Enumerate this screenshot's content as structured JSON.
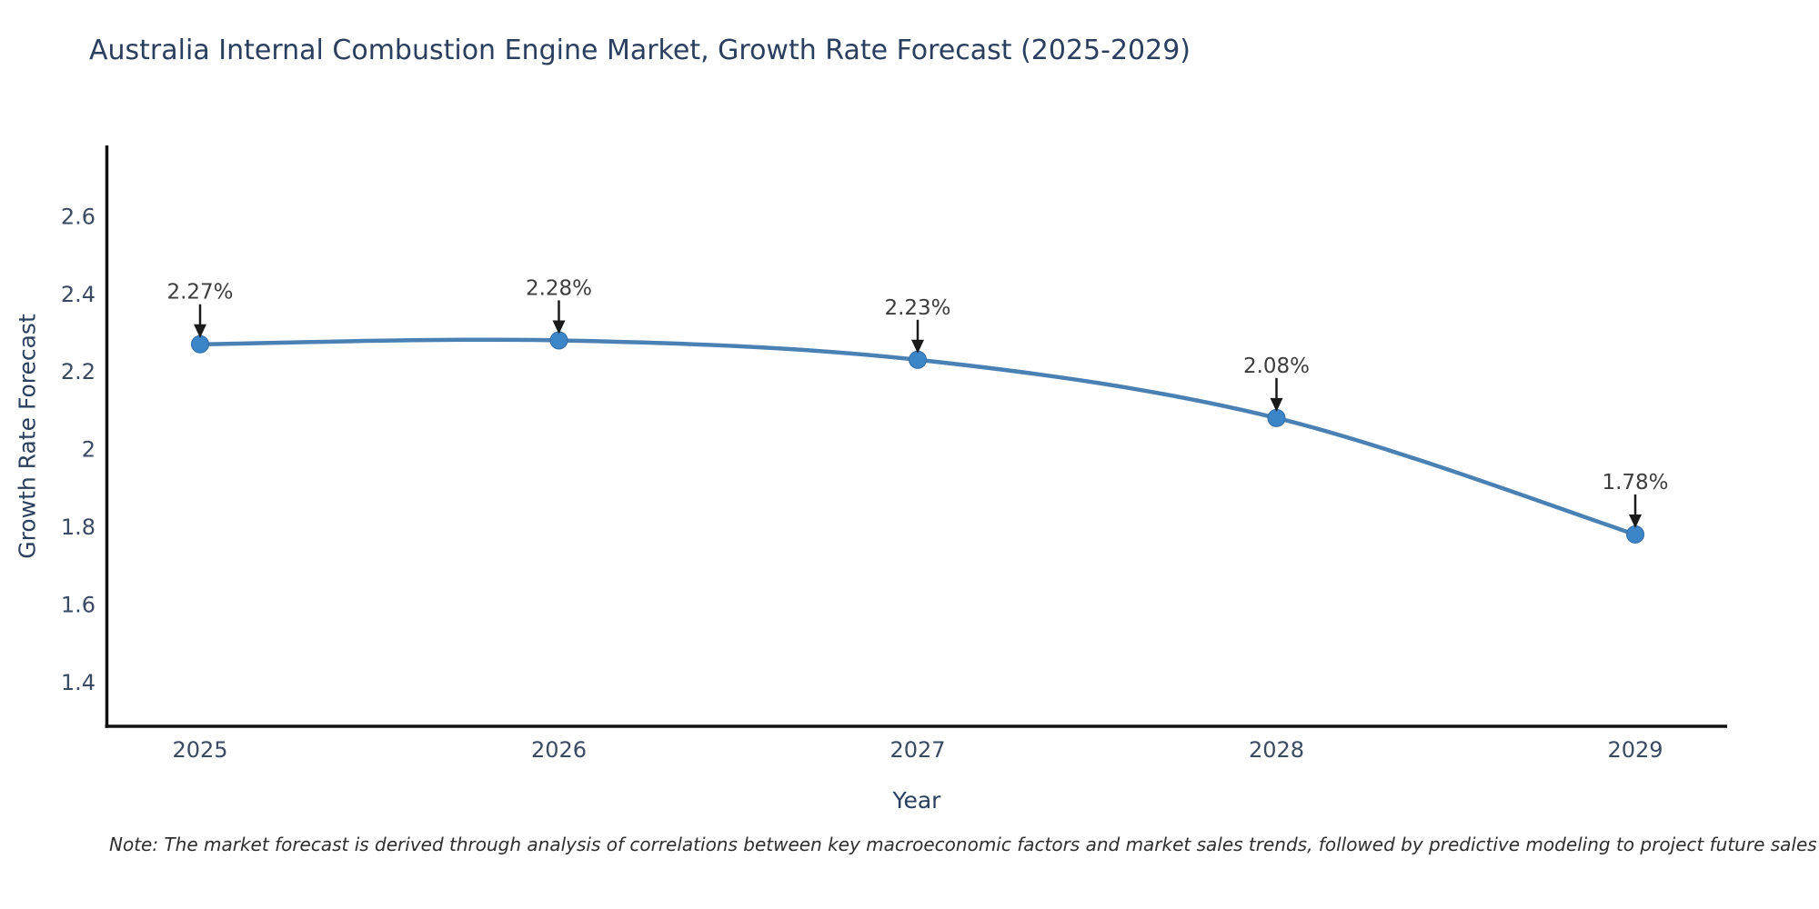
{
  "note": "Note: The market forecast is derived through analysis of correlations between key macroeconomic factors and market sales trends, followed by predictive modeling to project future sales",
  "colors": {
    "line": "#4a81b4",
    "marker": "#3c85c9",
    "marker_edge": "#2f6ba3",
    "axis": "#101010",
    "title": "#2a3f5f",
    "tick": "#3b4a63",
    "annotation_text": "#3d3d3d",
    "arrow": "#1a1a1a"
  },
  "chart_data": {
    "type": "line",
    "title": "Australia Internal Combustion Engine Market, Growth Rate Forecast (2025-2029)",
    "xlabel": "Year",
    "ylabel": "Growth Rate Forecast",
    "x": [
      2025,
      2026,
      2027,
      2028,
      2029
    ],
    "y": [
      2.27,
      2.28,
      2.23,
      2.08,
      1.78
    ],
    "point_labels": [
      "2.27%",
      "2.28%",
      "2.23%",
      "2.08%",
      "1.78%"
    ],
    "xtick_labels": [
      "2025",
      "2026",
      "2027",
      "2028",
      "2029"
    ],
    "ytick_labels": [
      "1.4",
      "1.6",
      "1.8",
      "2",
      "2.2",
      "2.4",
      "2.6"
    ],
    "ylim": [
      1.28,
      2.78
    ],
    "grid": false,
    "legend": "none",
    "line_shape": "spline",
    "annotation_style": "black-down-arrow"
  }
}
